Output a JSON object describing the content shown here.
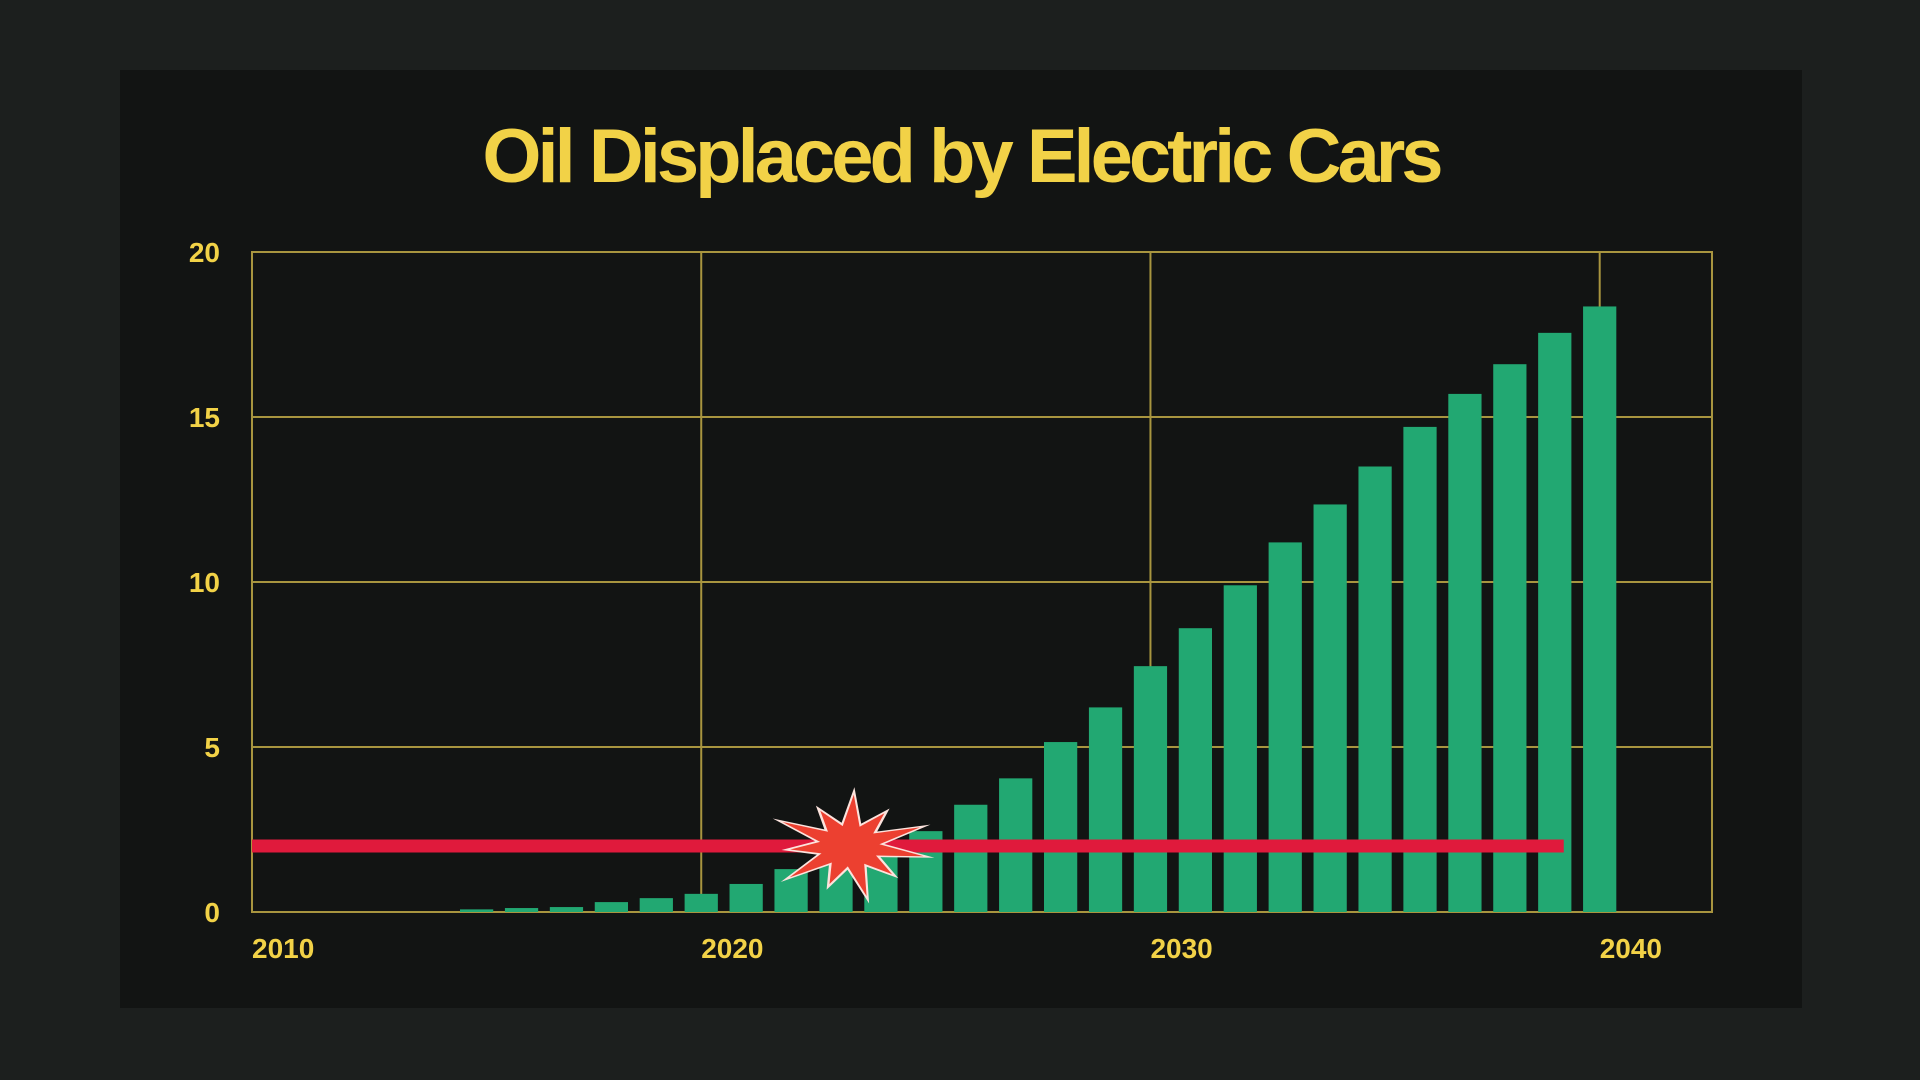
{
  "chart_data": {
    "type": "bar",
    "title": "Oil Displaced by Electric Cars",
    "xlabel": "",
    "ylabel": "",
    "x_ticks": [
      "2010",
      "2020",
      "2030",
      "2040"
    ],
    "y_ticks": [
      "0",
      "5",
      "10",
      "15",
      "20"
    ],
    "xlim": [
      2010,
      2042.5
    ],
    "ylim": [
      0,
      20
    ],
    "grid": true,
    "x": [
      2015,
      2016,
      2017,
      2018,
      2019,
      2020,
      2021,
      2022,
      2023,
      2024,
      2025,
      2026,
      2027,
      2028,
      2029,
      2030,
      2031,
      2032,
      2033,
      2034,
      2035,
      2036,
      2037,
      2038,
      2039,
      2040
    ],
    "values": [
      0.08,
      0.12,
      0.15,
      0.3,
      0.42,
      0.55,
      0.85,
      1.3,
      1.6,
      2.0,
      2.45,
      3.25,
      4.05,
      5.15,
      6.2,
      7.45,
      8.6,
      9.9,
      11.2,
      12.35,
      13.5,
      14.7,
      15.7,
      16.6,
      17.55,
      18.35
    ],
    "reference_line": {
      "value": 2,
      "x_start": 2010,
      "x_end": 2039.2
    },
    "burst_marker": {
      "x": 2023.3,
      "y": 2
    }
  },
  "colors": {
    "title": "#f2d247",
    "axis_labels": "#f2d247",
    "grid": "#a8953f",
    "bars": "#22a872",
    "reference_line": "#e01a3c",
    "burst": "#ec4030",
    "burst_highlight": "#fce3dd"
  }
}
